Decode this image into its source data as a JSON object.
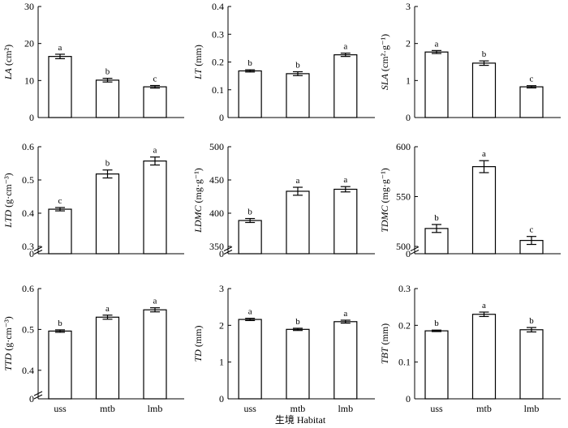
{
  "figure": {
    "xlabel": "生境 Habitat"
  },
  "chart_data": [
    {
      "type": "bar",
      "categories": [
        "uss",
        "mtb",
        "lmb"
      ],
      "values": [
        16.5,
        10.1,
        8.3
      ],
      "errors": [
        0.6,
        0.5,
        0.35
      ],
      "letters": [
        "a",
        "b",
        "c"
      ],
      "ylabel_main": "LA",
      "ylabel_unit": " (cm²)",
      "ylim": [
        0,
        30
      ],
      "yticks": [
        0,
        10,
        20,
        30
      ],
      "tick_labels": [
        "0",
        "10",
        "20",
        "30"
      ],
      "axis_break": false
    },
    {
      "type": "bar",
      "categories": [
        "uss",
        "mtb",
        "lmb"
      ],
      "values": [
        0.168,
        0.158,
        0.226
      ],
      "errors": [
        0.004,
        0.007,
        0.006
      ],
      "letters": [
        "b",
        "b",
        "a"
      ],
      "ylabel_main": "LT",
      "ylabel_unit": " (mm)",
      "ylim": [
        0,
        0.4
      ],
      "yticks": [
        0,
        0.1,
        0.2,
        0.3,
        0.4
      ],
      "tick_labels": [
        "0",
        "0.1",
        "0.2",
        "0.3",
        "0.4"
      ],
      "axis_break": false
    },
    {
      "type": "bar",
      "categories": [
        "uss",
        "mtb",
        "lmb"
      ],
      "values": [
        1.77,
        1.47,
        0.83
      ],
      "errors": [
        0.04,
        0.06,
        0.03
      ],
      "letters": [
        "a",
        "b",
        "c"
      ],
      "ylabel_main": "SLA",
      "ylabel_unit": " (cm²·g⁻¹)",
      "ylim": [
        0,
        3
      ],
      "yticks": [
        0,
        1,
        2,
        3
      ],
      "tick_labels": [
        "0",
        "1",
        "2",
        "3"
      ],
      "axis_break": false
    },
    {
      "type": "bar",
      "categories": [
        "uss",
        "mtb",
        "lmb"
      ],
      "values": [
        0.412,
        0.518,
        0.557
      ],
      "errors": [
        0.005,
        0.012,
        0.012
      ],
      "letters": [
        "c",
        "b",
        "a"
      ],
      "ylabel_main": "LTD",
      "ylabel_unit": " (g·cm⁻³)",
      "ylim": [
        0.3,
        0.6
      ],
      "yticks": [
        0.3,
        0.4,
        0.5,
        0.6
      ],
      "tick_labels": [
        "0.3",
        "0.4",
        "0.5",
        "0.6"
      ],
      "axis_break": true,
      "break_zero_label": "0"
    },
    {
      "type": "bar",
      "categories": [
        "uss",
        "mtb",
        "lmb"
      ],
      "values": [
        389,
        433,
        436
      ],
      "errors": [
        3,
        6,
        4
      ],
      "letters": [
        "b",
        "a",
        "a"
      ],
      "ylabel_main": "LDMC",
      "ylabel_unit": " (mg·g⁻¹)",
      "ylim": [
        350,
        500
      ],
      "yticks": [
        350,
        400,
        450,
        500
      ],
      "tick_labels": [
        "350",
        "400",
        "450",
        "500"
      ],
      "axis_break": true,
      "break_zero_label": "0"
    },
    {
      "type": "bar",
      "categories": [
        "uss",
        "mtb",
        "lmb"
      ],
      "values": [
        518,
        580,
        506
      ],
      "errors": [
        4,
        6,
        4
      ],
      "letters": [
        "b",
        "a",
        "c"
      ],
      "ylabel_main": "TDMC",
      "ylabel_unit": " (mg·g⁻¹)",
      "ylim": [
        500,
        600
      ],
      "yticks": [
        500,
        550,
        600
      ],
      "tick_labels": [
        "500",
        "550",
        "600"
      ],
      "axis_break": true,
      "break_zero_label": "0"
    },
    {
      "type": "bar",
      "categories": [
        "uss",
        "mtb",
        "lmb"
      ],
      "values": [
        0.496,
        0.53,
        0.548
      ],
      "errors": [
        0.003,
        0.005,
        0.005
      ],
      "letters": [
        "b",
        "a",
        "a"
      ],
      "ylabel_main": "TTD",
      "ylabel_unit": " (g·cm⁻³)",
      "ylim": [
        0.35,
        0.6
      ],
      "yticks": [
        0.4,
        0.5,
        0.6
      ],
      "tick_labels": [
        "0.4",
        "0.5",
        "0.6"
      ],
      "axis_break": true,
      "break_zero_label": "0"
    },
    {
      "type": "bar",
      "categories": [
        "uss",
        "mtb",
        "lmb"
      ],
      "values": [
        2.16,
        1.89,
        2.1
      ],
      "errors": [
        0.03,
        0.03,
        0.04
      ],
      "letters": [
        "a",
        "b",
        "a"
      ],
      "ylabel_main": "TD",
      "ylabel_unit": " (mm)",
      "ylim": [
        0,
        3
      ],
      "yticks": [
        0,
        1,
        2,
        3
      ],
      "tick_labels": [
        "0",
        "1",
        "2",
        "3"
      ],
      "axis_break": false
    },
    {
      "type": "bar",
      "categories": [
        "uss",
        "mtb",
        "lmb"
      ],
      "values": [
        0.185,
        0.23,
        0.188
      ],
      "errors": [
        0.002,
        0.006,
        0.006
      ],
      "letters": [
        "b",
        "a",
        "b"
      ],
      "ylabel_main": "TBT",
      "ylabel_unit": " (mm)",
      "ylim": [
        0,
        0.3
      ],
      "yticks": [
        0,
        0.1,
        0.2,
        0.3
      ],
      "tick_labels": [
        "0",
        "0.1",
        "0.2",
        "0.3"
      ],
      "axis_break": false
    }
  ]
}
